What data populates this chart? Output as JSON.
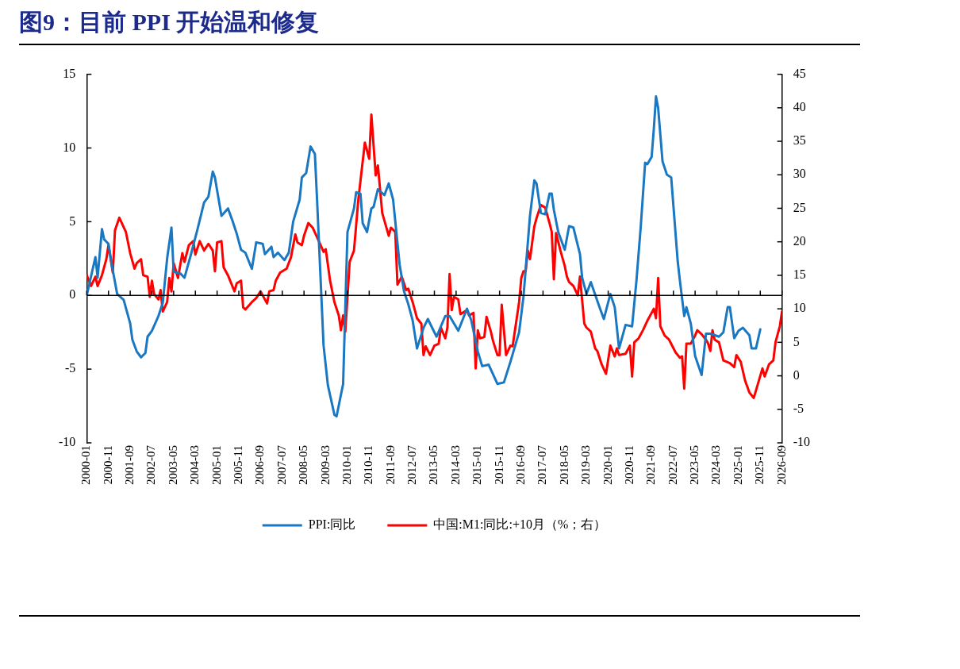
{
  "chart_data": {
    "type": "line",
    "title": "图9：目前 PPI 开始温和修复",
    "xlim": [
      "2000-01",
      "2026-09"
    ],
    "xticks": [
      "2000-01",
      "2000-11",
      "2001-09",
      "2002-07",
      "2003-05",
      "2004-03",
      "2005-01",
      "2005-11",
      "2006-09",
      "2007-07",
      "2008-05",
      "2009-03",
      "2010-01",
      "2010-11",
      "2011-09",
      "2012-07",
      "2013-05",
      "2014-03",
      "2015-01",
      "2015-11",
      "2016-09",
      "2017-07",
      "2018-05",
      "2019-03",
      "2020-01",
      "2020-11",
      "2021-09",
      "2022-07",
      "2023-05",
      "2024-03",
      "2025-01",
      "2025-11",
      "2026-09"
    ],
    "ylim": [
      -10,
      15
    ],
    "yticks": [
      -10,
      -5,
      0,
      5,
      10,
      15
    ],
    "y2lim": [
      -10,
      45
    ],
    "y2ticks": [
      -10,
      -5,
      0,
      5,
      10,
      15,
      20,
      25,
      30,
      35,
      40,
      45
    ],
    "grid": false,
    "ref_lines": [
      {
        "axis": "y",
        "value": 0,
        "color": "#000000"
      }
    ],
    "legend": "bottom",
    "marker": "none",
    "line_style": "solid",
    "series": [
      {
        "name": "PPI:同比",
        "color": "#1a78c2",
        "axis": "y",
        "x": [
          "2000-01",
          "2000-05",
          "2000-06",
          "2000-08",
          "2000-09",
          "2000-11",
          "2001-01",
          "2001-03",
          "2001-06",
          "2001-09",
          "2001-10",
          "2001-12",
          "2002-02",
          "2002-04",
          "2002-05",
          "2002-07",
          "2002-10",
          "2002-12",
          "2003-02",
          "2003-04",
          "2003-05",
          "2003-08",
          "2003-10",
          "2004-01",
          "2004-04",
          "2004-07",
          "2004-09",
          "2004-11",
          "2004-12",
          "2005-03",
          "2005-06",
          "2005-08",
          "2005-10",
          "2005-12",
          "2006-02",
          "2006-05",
          "2006-07",
          "2006-10",
          "2006-11",
          "2007-02",
          "2007-03",
          "2007-05",
          "2007-08",
          "2007-10",
          "2007-12",
          "2008-03",
          "2008-04",
          "2008-06",
          "2008-08",
          "2008-10",
          "2008-11",
          "2009-01",
          "2009-02",
          "2009-04",
          "2009-07",
          "2009-08",
          "2009-11",
          "2010-01",
          "2010-04",
          "2010-05",
          "2010-07",
          "2010-08",
          "2010-10",
          "2010-12",
          "2011-01",
          "2011-03",
          "2011-06",
          "2011-08",
          "2011-10",
          "2012-01",
          "2012-03",
          "2012-05",
          "2012-07",
          "2012-09",
          "2012-12",
          "2013-02",
          "2013-06",
          "2013-10",
          "2013-12",
          "2014-04",
          "2014-08",
          "2014-10",
          "2015-01",
          "2015-03",
          "2015-06",
          "2015-10",
          "2016-01",
          "2016-04",
          "2016-08",
          "2016-10",
          "2017-01",
          "2017-03",
          "2017-04",
          "2017-06",
          "2017-08",
          "2017-10",
          "2017-11",
          "2017-12",
          "2018-02",
          "2018-05",
          "2018-07",
          "2018-09",
          "2018-11",
          "2018-12",
          "2019-01",
          "2019-03",
          "2019-05",
          "2019-09",
          "2019-11",
          "2020-02",
          "2020-04",
          "2020-06",
          "2020-09",
          "2020-12",
          "2021-02",
          "2021-04",
          "2021-06",
          "2021-07",
          "2021-09",
          "2021-10",
          "2021-11",
          "2021-12",
          "2022-02",
          "2022-04",
          "2022-06",
          "2022-07",
          "2022-09",
          "2022-10",
          "2022-12",
          "2023-01",
          "2023-03",
          "2023-05",
          "2023-08",
          "2023-10",
          "2023-12",
          "2024-04",
          "2024-06",
          "2024-08",
          "2024-09",
          "2024-11",
          "2025-01",
          "2025-03",
          "2025-06",
          "2025-07",
          "2025-09",
          "2025-11"
        ],
        "values": [
          0,
          2.6,
          1.2,
          4.5,
          3.8,
          3.5,
          1.7,
          0.1,
          -0.3,
          -1.9,
          -3.0,
          -3.8,
          -4.2,
          -3.9,
          -2.8,
          -2.4,
          -1.4,
          -0.5,
          2.5,
          4.6,
          1.6,
          1.5,
          1.2,
          2.8,
          4.5,
          6.3,
          6.7,
          8.4,
          8.0,
          5.4,
          5.9,
          5.1,
          4.2,
          3.1,
          2.9,
          1.8,
          3.6,
          3.5,
          2.8,
          3.3,
          2.6,
          2.9,
          2.4,
          2.9,
          5.0,
          6.5,
          8.0,
          8.3,
          10.1,
          9.6,
          6.5,
          -0.1,
          -3.4,
          -6.1,
          -8.1,
          -8.2,
          -6.0,
          4.3,
          5.9,
          7.0,
          6.9,
          4.9,
          4.3,
          5.9,
          6.0,
          7.2,
          6.8,
          7.6,
          6.5,
          2.1,
          0.3,
          -0.6,
          -1.7,
          -3.6,
          -2.2,
          -1.6,
          -2.8,
          -1.4,
          -1.4,
          -2.4,
          -0.9,
          -1.7,
          -3.8,
          -4.8,
          -4.7,
          -6.0,
          -5.9,
          -4.5,
          -2.5,
          -0.1,
          5.4,
          7.8,
          7.6,
          5.6,
          5.5,
          6.9,
          6.9,
          5.8,
          4.3,
          3.1,
          4.7,
          4.6,
          3.4,
          2.8,
          1.2,
          0.1,
          0.9,
          -0.8,
          -1.6,
          0.1,
          -0.8,
          -3.6,
          -2.0,
          -2.1,
          1.0,
          4.7,
          9.0,
          8.9,
          9.4,
          11.3,
          13.5,
          12.7,
          9.1,
          8.2,
          8.0,
          6.1,
          2.3,
          1.0,
          -1.4,
          -0.8,
          -1.9,
          -4.1,
          -5.4,
          -2.6,
          -2.6,
          -2.8,
          -2.5,
          -0.8,
          -0.8,
          -2.9,
          -2.4,
          -2.2,
          -2.7,
          -3.6,
          -3.6,
          -2.3
        ]
      },
      {
        "name": "中国:M1:同比:+10月（%；右）",
        "color": "#ff0000",
        "axis": "y2",
        "x": [
          "2000-01",
          "2000-03",
          "2000-05",
          "2000-06",
          "2000-08",
          "2000-10",
          "2000-11",
          "2001-01",
          "2001-02",
          "2001-04",
          "2001-07",
          "2001-09",
          "2001-11",
          "2001-12",
          "2002-02",
          "2002-03",
          "2002-05",
          "2002-06",
          "2002-07",
          "2002-08",
          "2002-10",
          "2002-11",
          "2002-12",
          "2003-02",
          "2003-03",
          "2003-04",
          "2003-05",
          "2003-07",
          "2003-09",
          "2003-10",
          "2003-12",
          "2004-02",
          "2004-03",
          "2004-05",
          "2004-07",
          "2004-09",
          "2004-11",
          "2004-12",
          "2005-01",
          "2005-03",
          "2005-04",
          "2005-06",
          "2005-09",
          "2005-10",
          "2005-12",
          "2006-01",
          "2006-02",
          "2006-05",
          "2006-07",
          "2006-09",
          "2006-12",
          "2007-01",
          "2007-03",
          "2007-04",
          "2007-06",
          "2007-09",
          "2007-11",
          "2008-01",
          "2008-02",
          "2008-04",
          "2008-05",
          "2008-07",
          "2008-09",
          "2008-11",
          "2009-02",
          "2009-03",
          "2009-05",
          "2009-07",
          "2009-09",
          "2009-10",
          "2009-11",
          "2009-12",
          "2010-02",
          "2010-04",
          "2010-06",
          "2010-09",
          "2010-11",
          "2010-12",
          "2011-02",
          "2011-03",
          "2011-05",
          "2011-08",
          "2011-09",
          "2011-11",
          "2011-12",
          "2012-02",
          "2012-04",
          "2012-05",
          "2012-07",
          "2012-09",
          "2012-11",
          "2012-12",
          "2013-01",
          "2013-03",
          "2013-05",
          "2013-07",
          "2013-08",
          "2013-10",
          "2013-11",
          "2013-12",
          "2014-01",
          "2014-02",
          "2014-04",
          "2014-05",
          "2014-08",
          "2014-09",
          "2014-11",
          "2014-12",
          "2015-01",
          "2015-02",
          "2015-04",
          "2015-05",
          "2015-07",
          "2015-08",
          "2015-10",
          "2015-11",
          "2015-12",
          "2016-02",
          "2016-04",
          "2016-05",
          "2016-08",
          "2016-09",
          "2016-10",
          "2016-11",
          "2016-12",
          "2017-01",
          "2017-03",
          "2017-04",
          "2017-06",
          "2017-08",
          "2017-10",
          "2017-11",
          "2017-12",
          "2018-01",
          "2018-03",
          "2018-05",
          "2018-06",
          "2018-07",
          "2018-09",
          "2018-11",
          "2018-12",
          "2019-02",
          "2019-03",
          "2019-05",
          "2019-07",
          "2019-08",
          "2019-10",
          "2019-12",
          "2020-02",
          "2020-04",
          "2020-05",
          "2020-06",
          "2020-09",
          "2020-11",
          "2020-12",
          "2021-01",
          "2021-03",
          "2021-05",
          "2021-07",
          "2021-10",
          "2021-11",
          "2021-12",
          "2022-01",
          "2022-03",
          "2022-05",
          "2022-08",
          "2022-10",
          "2022-11",
          "2022-12",
          "2023-01",
          "2023-03",
          "2023-05",
          "2023-06",
          "2023-08",
          "2023-10",
          "2023-11",
          "2023-12",
          "2024-01",
          "2024-02",
          "2024-04",
          "2024-06",
          "2024-09",
          "2024-11",
          "2024-12",
          "2025-02",
          "2025-04",
          "2025-06",
          "2025-08",
          "2025-10",
          "2025-12",
          "2026-01",
          "2026-03",
          "2026-05",
          "2026-06",
          "2026-07",
          "2026-08",
          "2026-09"
        ],
        "values": [
          15.0,
          13.4,
          14.8,
          13.4,
          15.0,
          17.4,
          19.5,
          15.4,
          21.7,
          23.6,
          21.5,
          18.3,
          16.0,
          16.8,
          17.4,
          15.0,
          14.8,
          11.8,
          14.2,
          12.2,
          11.4,
          12.8,
          9.6,
          11.0,
          14.6,
          12.6,
          16.8,
          14.6,
          18.3,
          17.0,
          19.5,
          20.1,
          18.1,
          20.1,
          18.7,
          19.7,
          18.7,
          15.6,
          19.9,
          20.1,
          16.2,
          15.0,
          12.6,
          13.8,
          14.2,
          10.2,
          9.9,
          11.0,
          11.6,
          12.6,
          10.8,
          12.6,
          12.8,
          14.2,
          15.4,
          16.0,
          17.7,
          21.1,
          19.9,
          19.5,
          20.9,
          22.8,
          22.1,
          20.7,
          18.5,
          18.9,
          14.2,
          11.0,
          9.0,
          6.8,
          9.0,
          6.6,
          17.0,
          18.7,
          26.3,
          34.8,
          32.4,
          39.0,
          29.9,
          31.4,
          24.3,
          20.9,
          22.1,
          21.5,
          13.6,
          14.8,
          12.8,
          13.0,
          11.0,
          8.6,
          7.8,
          3.1,
          4.4,
          3.1,
          4.5,
          4.8,
          7.2,
          5.6,
          7.2,
          15.2,
          9.8,
          11.8,
          11.4,
          9.2,
          9.8,
          9.0,
          9.4,
          1.1,
          6.8,
          5.6,
          5.8,
          8.8,
          6.6,
          5.2,
          3.1,
          3.1,
          10.6,
          3.1,
          4.5,
          4.4,
          11.0,
          14.6,
          15.6,
          15.6,
          18.7,
          17.4,
          22.3,
          23.5,
          25.5,
          25.1,
          22.8,
          21.5,
          14.4,
          21.3,
          18.7,
          16.4,
          14.8,
          14.0,
          13.4,
          12.0,
          14.8,
          7.8,
          7.2,
          6.6,
          4.1,
          3.7,
          1.7,
          0.3,
          4.5,
          2.9,
          4.1,
          3.1,
          3.3,
          4.5,
          -0.1,
          5.0,
          5.6,
          6.8,
          8.2,
          10.0,
          8.6,
          14.6,
          7.4,
          6.0,
          5.4,
          3.5,
          2.7,
          2.9,
          -1.9,
          4.8,
          4.8,
          6.0,
          6.8,
          6.2,
          5.4,
          4.8,
          3.7,
          6.8,
          5.4,
          5.0,
          2.3,
          1.9,
          1.3,
          3.1,
          2.1,
          -0.7,
          -2.5,
          -3.3,
          -1.1,
          1.1,
          -0.1,
          1.7,
          2.3,
          5.0,
          6.2,
          7.4,
          9.6
        ]
      }
    ]
  }
}
